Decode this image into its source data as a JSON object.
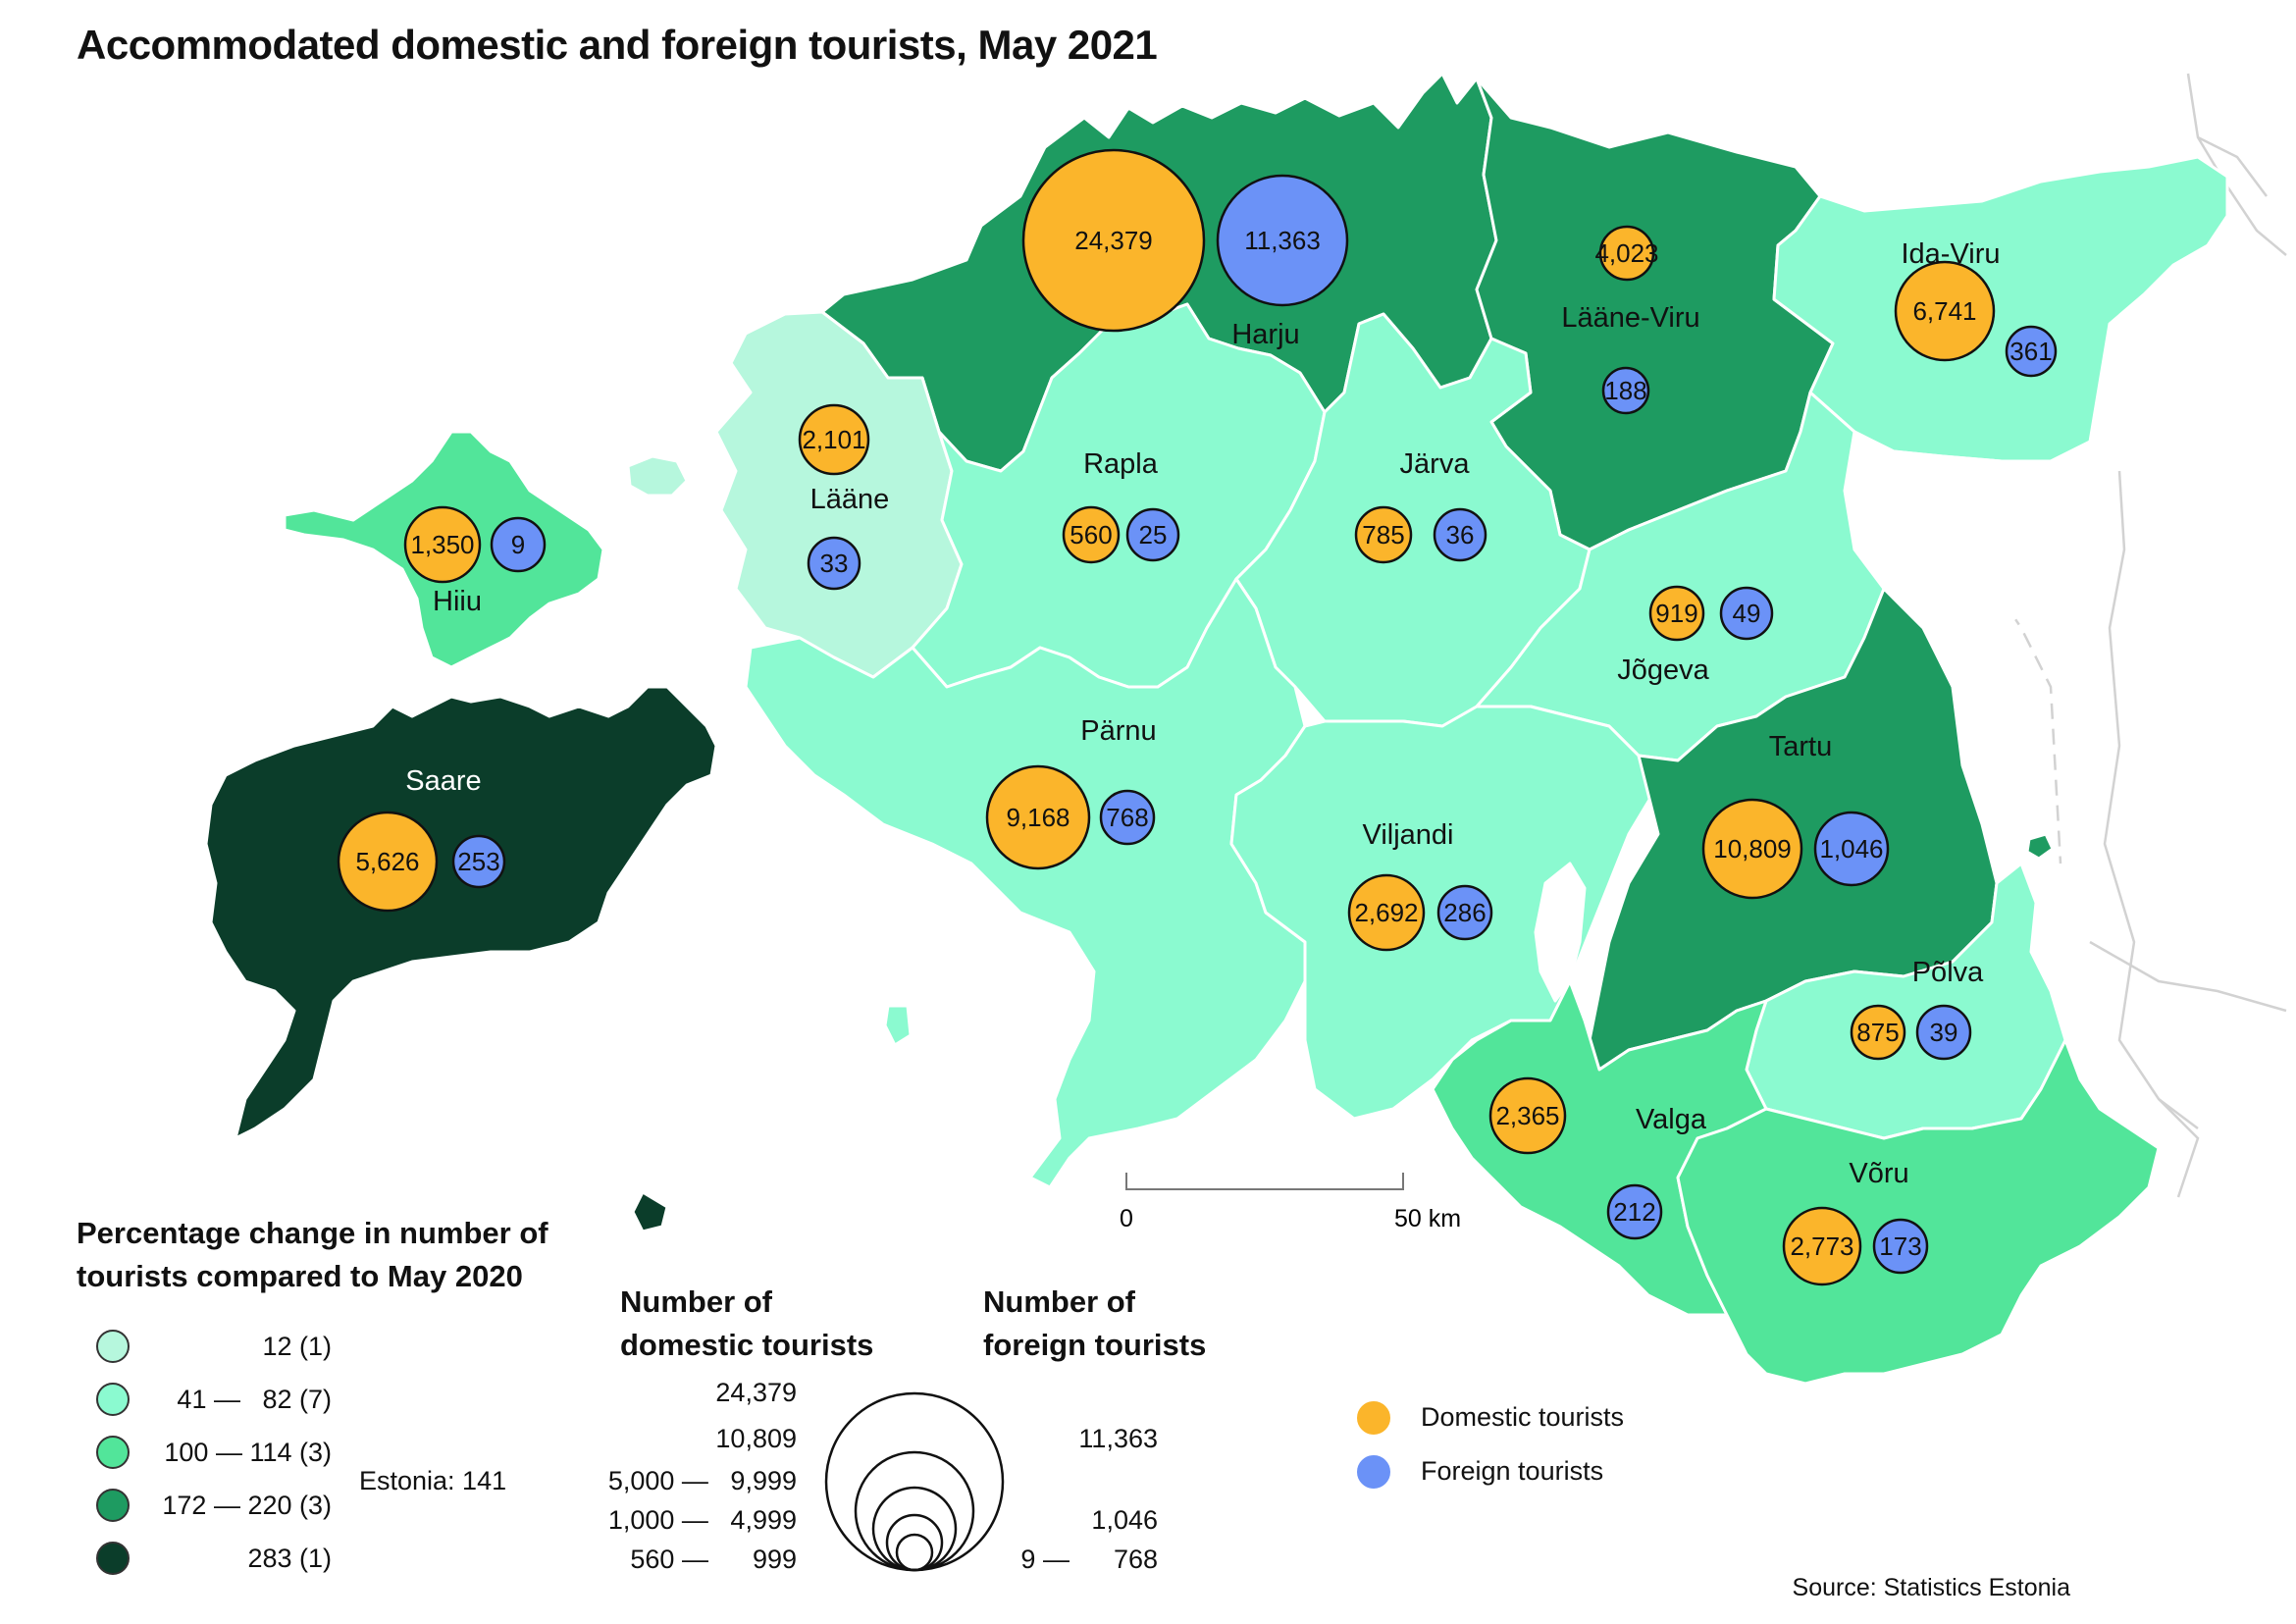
{
  "title": "Accommodated domestic and foreign tourists, May 2021",
  "colors": {
    "c1": "#b6f7dd",
    "c2": "#8bfad0",
    "c3": "#52e59a",
    "c4": "#1e9b61",
    "c5": "#0b3d2a",
    "domestic": "#fbb52b",
    "foreign": "#6b92f7"
  },
  "regions": [
    {
      "id": "harju",
      "name": "Harju",
      "cls": "c4",
      "domestic": "24,379",
      "foreign": "11,363"
    },
    {
      "id": "laane-viru",
      "name": "Lääne-Viru",
      "cls": "c4",
      "domestic": "4,023",
      "foreign": "188"
    },
    {
      "id": "ida-viru",
      "name": "Ida-Viru",
      "cls": "c2",
      "domestic": "6,741",
      "foreign": "361"
    },
    {
      "id": "laane",
      "name": "Lääne",
      "cls": "c1",
      "domestic": "2,101",
      "foreign": "33"
    },
    {
      "id": "rapla",
      "name": "Rapla",
      "cls": "c2",
      "domestic": "560",
      "foreign": "25"
    },
    {
      "id": "jarva",
      "name": "Järva",
      "cls": "c2",
      "domestic": "785",
      "foreign": "36"
    },
    {
      "id": "hiiu",
      "name": "Hiiu",
      "cls": "c3",
      "domestic": "1,350",
      "foreign": "9"
    },
    {
      "id": "jogeva",
      "name": "Jõgeva",
      "cls": "c2",
      "domestic": "919",
      "foreign": "49"
    },
    {
      "id": "saare",
      "name": "Saare",
      "cls": "c5",
      "domestic": "5,626",
      "foreign": "253"
    },
    {
      "id": "parnu",
      "name": "Pärnu",
      "cls": "c2",
      "domestic": "9,168",
      "foreign": "768"
    },
    {
      "id": "tartu",
      "name": "Tartu",
      "cls": "c4",
      "domestic": "10,809",
      "foreign": "1,046"
    },
    {
      "id": "viljandi",
      "name": "Viljandi",
      "cls": "c2",
      "domestic": "2,692",
      "foreign": "286"
    },
    {
      "id": "polva",
      "name": "Põlva",
      "cls": "c2",
      "domestic": "875",
      "foreign": "39"
    },
    {
      "id": "valga",
      "name": "Valga",
      "cls": "c3",
      "domestic": "2,365",
      "foreign": "212"
    },
    {
      "id": "voru",
      "name": "Võru",
      "cls": "c3",
      "domestic": "2,773",
      "foreign": "173"
    }
  ],
  "scale": {
    "start": "0",
    "end": "50 km"
  },
  "choropleth_legend": {
    "title_line1": "Percentage change in number of",
    "title_line2": "tourists compared to May 2020",
    "items": [
      {
        "cls": "c1",
        "range": "12 (1)"
      },
      {
        "cls": "c2",
        "range": "41 —   82 (7)"
      },
      {
        "cls": "c3",
        "range": "100 — 114 (3)"
      },
      {
        "cls": "c4",
        "range": "172 — 220 (3)"
      },
      {
        "cls": "c5",
        "range": "283 (1)"
      }
    ],
    "estonia": "Estonia: 141"
  },
  "size_legend": {
    "domestic_title_line1": "Number of",
    "domestic_title_line2": "domestic tourists",
    "foreign_title_line1": "Number of",
    "foreign_title_line2": "foreign tourists",
    "domestic_labels": [
      "24,379",
      "10,809",
      "5,000 —   9,999",
      "1,000 —   4,999",
      "560 —      999"
    ],
    "foreign_labels": [
      "11,363",
      "1,046",
      "9 —      768"
    ]
  },
  "color_legend": {
    "domestic": "Domestic tourists",
    "foreign": "Foreign tourists"
  },
  "source": "Source: Statistics Estonia"
}
